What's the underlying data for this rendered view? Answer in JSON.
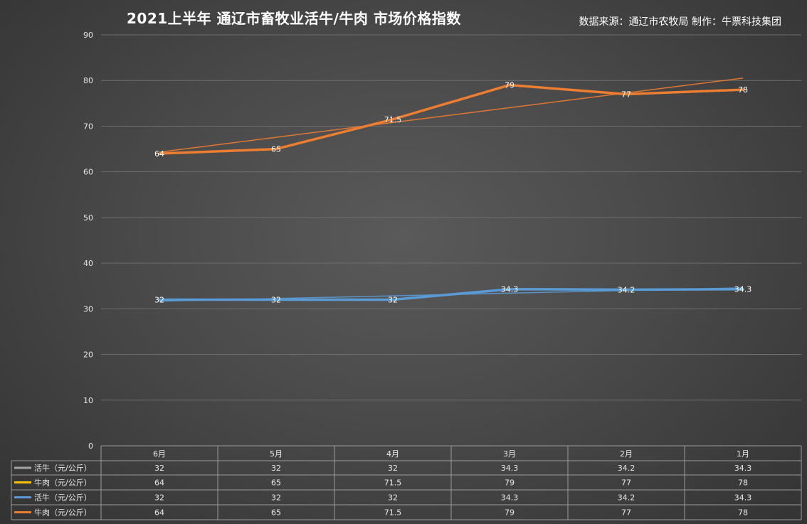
{
  "chart_data": {
    "type": "line",
    "title": "2021上半年 通辽市畜牧业活牛/牛肉 市场价格指数",
    "source_note": "数据来源：通辽市农牧局  制作：牛票科技集团",
    "categories": [
      "6月",
      "5月",
      "4月",
      "3月",
      "2月",
      "1月"
    ],
    "ylim": [
      0,
      90
    ],
    "yticks": [
      0,
      10,
      20,
      30,
      40,
      50,
      60,
      70,
      80,
      90
    ],
    "grid": true,
    "series": [
      {
        "name": "活牛（元/公斤）",
        "values": [
          32,
          32,
          32,
          34.3,
          34.2,
          34.3
        ],
        "color": "#a5a5a5",
        "plotted": false
      },
      {
        "name": "牛肉（元/公斤）",
        "values": [
          64,
          65,
          71.5,
          79,
          77,
          78
        ],
        "color": "#ffc000",
        "plotted": false
      },
      {
        "name": "活牛（元/公斤）",
        "values": [
          32,
          32,
          32,
          34.3,
          34.2,
          34.3
        ],
        "color": "#5b9bd5",
        "plotted": true,
        "trendline": true
      },
      {
        "name": "牛肉（元/公斤）",
        "values": [
          64,
          65,
          71.5,
          79,
          77,
          78
        ],
        "color": "#ed7d31",
        "plotted": true,
        "trendline": true
      }
    ]
  }
}
